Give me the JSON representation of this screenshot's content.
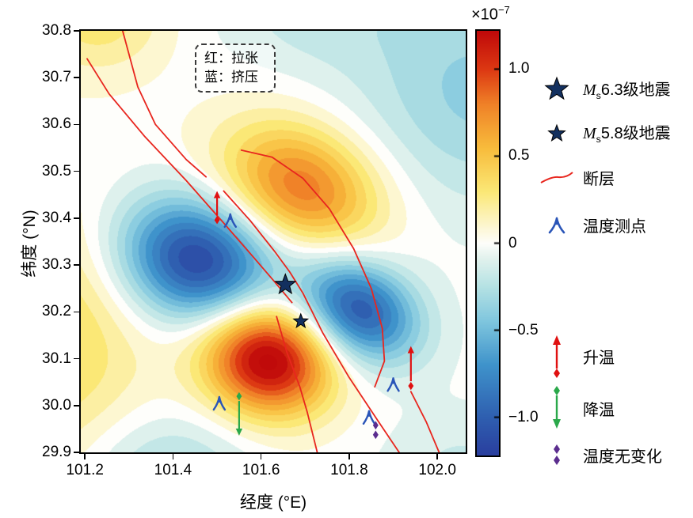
{
  "axes": {
    "xlabel": "经度 (°E)",
    "ylabel": "纬度 (°N)",
    "x_ticks": [
      {
        "v": 101.2,
        "label": "101.2"
      },
      {
        "v": 101.4,
        "label": "101.4"
      },
      {
        "v": 101.6,
        "label": "101.6"
      },
      {
        "v": 101.8,
        "label": "101.8"
      },
      {
        "v": 102.0,
        "label": "102.0"
      }
    ],
    "y_ticks": [
      {
        "v": 29.9,
        "label": "29.9"
      },
      {
        "v": 30.0,
        "label": "30.0"
      },
      {
        "v": 30.1,
        "label": "30.1"
      },
      {
        "v": 30.2,
        "label": "30.2"
      },
      {
        "v": 30.3,
        "label": "30.3"
      },
      {
        "v": 30.4,
        "label": "30.4"
      },
      {
        "v": 30.5,
        "label": "30.5"
      },
      {
        "v": 30.6,
        "label": "30.6"
      },
      {
        "v": 30.7,
        "label": "30.7"
      },
      {
        "v": 30.8,
        "label": "30.8"
      }
    ]
  },
  "inner_legend": {
    "line1": "红：拉张",
    "line2": "蓝：挤压"
  },
  "colorbar": {
    "exp_prefix": "×10",
    "exp_sup": "−7",
    "ticks": [
      {
        "v": 1.0,
        "label": "1.0"
      },
      {
        "v": 0.5,
        "label": "0.5"
      },
      {
        "v": 0,
        "label": "0"
      },
      {
        "v": -0.5,
        "label": "−0.5"
      },
      {
        "v": -1.0,
        "label": "−1.0"
      }
    ],
    "vmin": -1.22,
    "vmax": 1.22
  },
  "legend": {
    "eq63": {
      "m": "M",
      "sub": "s",
      "rest": "6.3级地震"
    },
    "eq58": {
      "m": "M",
      "sub": "s",
      "rest": "5.8级地震"
    },
    "fault": "断层",
    "station": "温度测点",
    "warming": "升温",
    "cooling": "降温",
    "no_change": "温度无变化"
  },
  "colors": {
    "fault": "#e8261e",
    "station": "#2a55b8",
    "warming": "#e01010",
    "cooling": "#2aa84a",
    "no_change": "#5b2d8e",
    "star": "#13305f"
  },
  "chart_data": {
    "type": "heatmap",
    "xlabel": "经度 (°E)",
    "ylabel": "纬度 (°N)",
    "xlim": [
      101.187,
      102.068
    ],
    "ylim": [
      29.897,
      30.803
    ],
    "value_scale": "×10⁻⁷",
    "colorbar": {
      "vmin": -1.22,
      "vmax": 1.22,
      "ticks": [
        1.0,
        0.5,
        0,
        -0.5,
        -1.0
      ]
    },
    "colormap": [
      {
        "v": -1.22,
        "c": "#2a3f9f"
      },
      {
        "v": -1.0,
        "c": "#2f5fb0"
      },
      {
        "v": -0.7,
        "c": "#3f93cb"
      },
      {
        "v": -0.45,
        "c": "#7fc6de"
      },
      {
        "v": -0.25,
        "c": "#b5e2e4"
      },
      {
        "v": -0.08,
        "c": "#e4f3ee"
      },
      {
        "v": 0,
        "c": "#fefefb"
      },
      {
        "v": 0.08,
        "c": "#fdf8da"
      },
      {
        "v": 0.3,
        "c": "#fbe876"
      },
      {
        "v": 0.55,
        "c": "#f8bc3c"
      },
      {
        "v": 0.8,
        "c": "#f08228"
      },
      {
        "v": 1.0,
        "c": "#dd3913"
      },
      {
        "v": 1.22,
        "c": "#c00a0a"
      }
    ],
    "strain_lobes": [
      {
        "lon": 101.455,
        "lat": 30.31,
        "amp": -1.18,
        "sx": 0.125,
        "sy": 0.092,
        "rot": -0.25
      },
      {
        "lon": 101.82,
        "lat": 30.205,
        "amp": -1.05,
        "sx": 0.1,
        "sy": 0.072,
        "rot": -0.45
      },
      {
        "lon": 101.615,
        "lat": 30.1,
        "amp": 1.35,
        "sx": 0.102,
        "sy": 0.083,
        "rot": -0.2
      },
      {
        "lon": 101.69,
        "lat": 30.465,
        "amp": 0.85,
        "sx": 0.13,
        "sy": 0.092,
        "rot": -0.35
      },
      {
        "lon": 101.13,
        "lat": 30.14,
        "amp": 0.38,
        "sx": 0.15,
        "sy": 0.2,
        "rot": 0
      },
      {
        "lon": 101.23,
        "lat": 30.83,
        "amp": 0.32,
        "sx": 0.11,
        "sy": 0.085,
        "rot": 0
      },
      {
        "lon": 102.1,
        "lat": 30.67,
        "amp": -0.38,
        "sx": 0.2,
        "sy": 0.17,
        "rot": 0
      },
      {
        "lon": 101.72,
        "lat": 30.84,
        "amp": -0.18,
        "sx": 0.16,
        "sy": 0.09,
        "rot": 0
      },
      {
        "lon": 101.38,
        "lat": 29.86,
        "amp": -0.3,
        "sx": 0.14,
        "sy": 0.09,
        "rot": 0
      },
      {
        "lon": 102.06,
        "lat": 29.86,
        "amp": -0.18,
        "sx": 0.13,
        "sy": 0.09,
        "rot": 0
      }
    ],
    "faults": [
      {
        "points": [
          [
            101.285,
            30.802
          ],
          [
            101.32,
            30.68
          ],
          [
            101.36,
            30.6
          ],
          [
            101.43,
            30.525
          ],
          [
            101.475,
            30.488
          ]
        ]
      },
      {
        "points": [
          [
            101.515,
            30.458
          ],
          [
            101.575,
            30.395
          ],
          [
            101.63,
            30.33
          ],
          [
            101.665,
            30.285
          ],
          [
            101.695,
            30.24
          ],
          [
            101.74,
            30.155
          ],
          [
            101.8,
            30.06
          ],
          [
            101.86,
            29.975
          ],
          [
            101.915,
            29.898
          ]
        ]
      },
      {
        "points": [
          [
            101.205,
            30.74
          ],
          [
            101.255,
            30.665
          ],
          [
            101.335,
            30.575
          ],
          [
            101.43,
            30.48
          ],
          [
            101.51,
            30.395
          ],
          [
            101.575,
            30.325
          ],
          [
            101.63,
            30.265
          ],
          [
            101.67,
            30.22
          ]
        ]
      },
      {
        "points": [
          [
            101.555,
            30.545
          ],
          [
            101.625,
            30.53
          ],
          [
            101.695,
            30.485
          ],
          [
            101.755,
            30.42
          ],
          [
            101.81,
            30.335
          ],
          [
            101.85,
            30.25
          ],
          [
            101.875,
            30.165
          ],
          [
            101.88,
            30.095
          ],
          [
            101.858,
            30.04
          ]
        ]
      },
      {
        "points": [
          [
            101.635,
            30.19
          ],
          [
            101.658,
            30.115
          ],
          [
            101.688,
            30.04
          ],
          [
            101.705,
            29.985
          ],
          [
            101.728,
            29.898
          ]
        ]
      },
      {
        "points": [
          [
            101.94,
            30.03
          ],
          [
            101.975,
            29.965
          ],
          [
            102.005,
            29.898
          ]
        ]
      }
    ],
    "earthquakes": [
      {
        "label": "Ms6.3级地震",
        "lon": 101.655,
        "lat": 30.258,
        "size": 13.5
      },
      {
        "label": "Ms5.8级地震",
        "lon": 101.69,
        "lat": 30.18,
        "size": 9.5
      }
    ],
    "temperature_stations": [
      [
        101.53,
        30.395
      ],
      [
        101.505,
        30.005
      ],
      [
        101.845,
        29.975
      ],
      [
        101.9,
        30.045
      ]
    ],
    "warming_markers": [
      {
        "lon": 101.5,
        "diamond_lat": 30.396,
        "tip_lat": 30.458
      },
      {
        "lon": 101.94,
        "diamond_lat": 30.042,
        "tip_lat": 30.127
      }
    ],
    "cooling_markers": [
      {
        "lon": 101.55,
        "diamond_lat": 30.02,
        "tip_lat": 29.936
      }
    ],
    "no_change_markers": [
      {
        "lon": 101.86,
        "lat": 29.948
      }
    ]
  }
}
